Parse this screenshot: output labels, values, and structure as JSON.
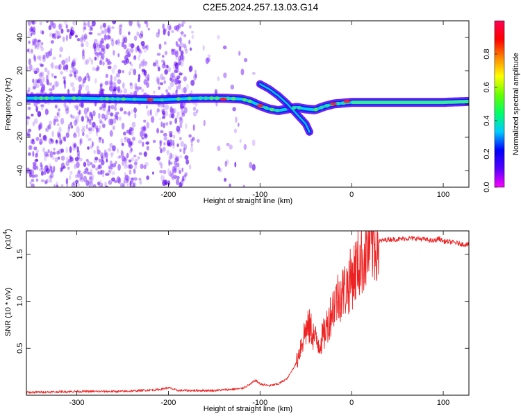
{
  "figure": {
    "title": "C2E5.2024.257.13.03.G14"
  },
  "chart_data": [
    {
      "type": "heatmap",
      "xlabel": "Height of straight line (km)",
      "ylabel": "Frequency (Hz)",
      "xlim": [
        -355,
        128
      ],
      "ylim": [
        -50,
        50
      ],
      "x_ticks": [
        -300,
        -200,
        -100,
        0,
        100
      ],
      "y_ticks": [
        -40,
        -20,
        0,
        20,
        40
      ],
      "colorbar": {
        "label": "Normalized spectral amplitude",
        "range": [
          0.0,
          1.0
        ],
        "ticks": [
          "0.0",
          "0.2",
          "0.4",
          "0.6",
          "0.8"
        ],
        "tick_values": [
          0.0,
          0.2,
          0.4,
          0.6,
          0.8
        ],
        "colormap": [
          "#ff00ff",
          "#5500ff",
          "#0000ff",
          "#00ccff",
          "#00ff66",
          "#66ff00",
          "#ffff00",
          "#ff8800",
          "#ff0000",
          "#ff0055"
        ]
      },
      "ridge": [
        {
          "x": -355,
          "y": 3.5
        },
        {
          "x": -300,
          "y": 3.5
        },
        {
          "x": -250,
          "y": 3
        },
        {
          "x": -210,
          "y": 2.5
        },
        {
          "x": -170,
          "y": 3.5
        },
        {
          "x": -140,
          "y": 3.5
        },
        {
          "x": -120,
          "y": 3
        },
        {
          "x": -110,
          "y": 1.5
        },
        {
          "x": -100,
          "y": -1
        },
        {
          "x": -90,
          "y": -3
        },
        {
          "x": -80,
          "y": -4
        },
        {
          "x": -70,
          "y": -3
        },
        {
          "x": -60,
          "y": -2
        },
        {
          "x": -50,
          "y": -3
        },
        {
          "x": -40,
          "y": -3.5
        },
        {
          "x": -30,
          "y": -1.5
        },
        {
          "x": -20,
          "y": 0
        },
        {
          "x": -10,
          "y": 0.5
        },
        {
          "x": 0,
          "y": 1
        },
        {
          "x": 20,
          "y": 1
        },
        {
          "x": 60,
          "y": 1
        },
        {
          "x": 100,
          "y": 1
        },
        {
          "x": 128,
          "y": 1.5
        }
      ],
      "branch": [
        {
          "x": -100,
          "y": 12
        },
        {
          "x": -90,
          "y": 9
        },
        {
          "x": -80,
          "y": 5
        },
        {
          "x": -70,
          "y": 0
        },
        {
          "x": -60,
          "y": -6
        },
        {
          "x": -50,
          "y": -12
        },
        {
          "x": -45,
          "y": -18
        }
      ],
      "peaks": [
        {
          "x": -220,
          "y": 2.5
        },
        {
          "x": -140,
          "y": 3
        },
        {
          "x": -100,
          "y": -1
        },
        {
          "x": -20,
          "y": 0
        },
        {
          "x": -5,
          "y": 1.5
        }
      ]
    },
    {
      "type": "line",
      "xlabel": "Height of straight line (km)",
      "ylabel": "SNR (10 * v/v)",
      "y_multiplier": "(x10",
      "y_multiplier_exp": "4",
      "xlim": [
        -355,
        128
      ],
      "ylim": [
        0,
        1.75
      ],
      "x_ticks": [
        -300,
        -200,
        -100,
        0,
        100
      ],
      "y_ticks": [
        "0.5",
        "1.0",
        "1.5"
      ],
      "y_tick_values": [
        0.5,
        1.0,
        1.5
      ],
      "color": "#ee2222",
      "series": [
        {
          "x": [
            -355,
            -300,
            -250,
            -210,
            -200,
            -190,
            -150,
            -120,
            -110,
            -105,
            -100,
            -90,
            -80,
            -70,
            -60,
            -55,
            -50,
            -45,
            -40,
            -35,
            -30,
            -25,
            -20,
            -15,
            -10,
            -5,
            0,
            5,
            10,
            15,
            20,
            30,
            40,
            50,
            60,
            70,
            80,
            90,
            95,
            100,
            110,
            120,
            128
          ],
          "y": [
            0.03,
            0.04,
            0.04,
            0.06,
            0.08,
            0.05,
            0.05,
            0.07,
            0.12,
            0.16,
            0.12,
            0.1,
            0.12,
            0.18,
            0.35,
            0.55,
            0.7,
            0.72,
            0.6,
            0.55,
            0.65,
            0.8,
            0.95,
            1.05,
            1.1,
            1.15,
            1.25,
            1.35,
            1.45,
            1.5,
            1.58,
            1.64,
            1.66,
            1.66,
            1.67,
            1.67,
            1.66,
            1.64,
            1.67,
            1.64,
            1.63,
            1.61,
            1.6
          ]
        }
      ]
    }
  ]
}
